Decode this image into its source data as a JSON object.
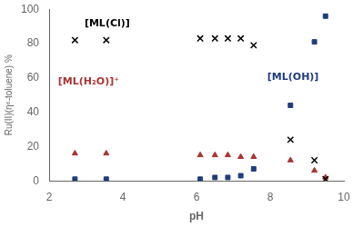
{
  "chart_data": {
    "type": "scatter",
    "xlabel": "pH",
    "ylabel": "Ru(II)(η⁶-toluene) %",
    "xlim": [
      2,
      10
    ],
    "ylim": [
      0,
      100
    ],
    "xticks": [
      2,
      4,
      6,
      8,
      10
    ],
    "yticks": [
      0,
      20,
      40,
      60,
      80,
      100
    ],
    "grid": false,
    "legend": false,
    "x": [
      2.7,
      3.55,
      6.1,
      6.5,
      6.85,
      7.2,
      7.55,
      8.55,
      9.2,
      9.5
    ],
    "series": [
      {
        "name": "[ML(Cl)]",
        "color": "black",
        "marker": "x",
        "values": [
          82,
          82,
          83,
          83,
          83,
          83,
          79,
          24,
          12,
          1
        ]
      },
      {
        "name": "[ML(H₂O)]⁺",
        "color": "#aa3333",
        "marker": "triangle",
        "values": [
          16,
          16,
          15,
          15,
          15,
          14,
          14,
          12,
          6,
          2
        ]
      },
      {
        "name": "[ML(OH)]",
        "color": "#1f3d7a",
        "marker": "square",
        "values": [
          1,
          1,
          1,
          2,
          2,
          3,
          7,
          44,
          81,
          96
        ]
      }
    ]
  }
}
